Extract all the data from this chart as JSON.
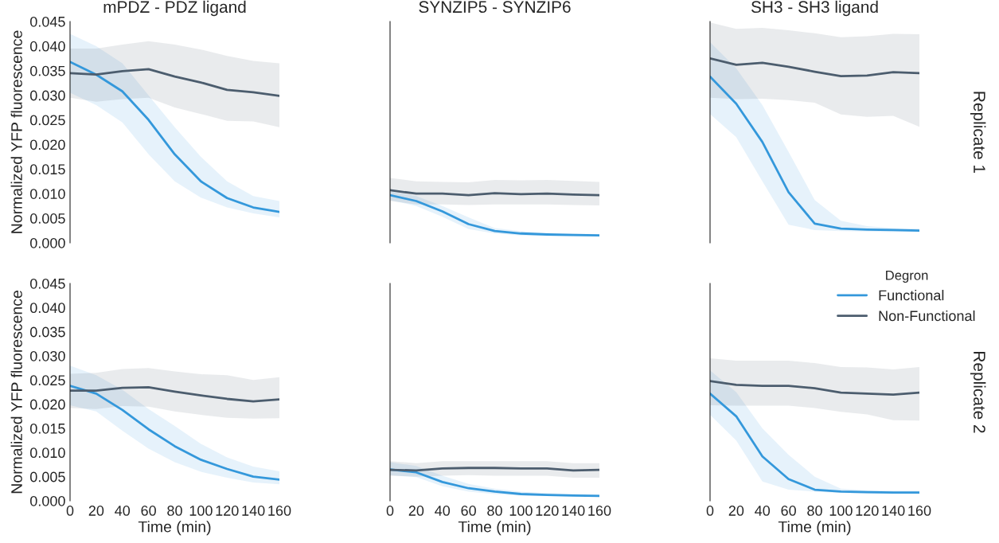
{
  "chart_data": [
    {
      "type": "line",
      "title": "mPDZ - PDZ ligand",
      "ylabel": "Normalized YFP fluorescence",
      "x": [
        0,
        20,
        40,
        60,
        80,
        100,
        120,
        140,
        160
      ],
      "xlim": [
        0,
        160
      ],
      "ylim": [
        0,
        0.045
      ],
      "yticks": [
        {
          "value": 0,
          "label": "0.000"
        },
        {
          "value": 0.005,
          "label": "0.005"
        },
        {
          "value": 0.01,
          "label": "0.010"
        },
        {
          "value": 0.015,
          "label": "0.015"
        },
        {
          "value": 0.02,
          "label": "0.020"
        },
        {
          "value": 0.025,
          "label": "0.025"
        },
        {
          "value": 0.03,
          "label": "0.030"
        },
        {
          "value": 0.035,
          "label": "0.035"
        },
        {
          "value": 0.04,
          "label": "0.040"
        },
        {
          "value": 0.045,
          "label": "0.045"
        }
      ],
      "tick_labels": "y",
      "grid": false,
      "series": [
        {
          "color": "#3498db",
          "values": [
            0.0368,
            0.0342,
            0.0308,
            0.025,
            0.018,
            0.0125,
            0.0091,
            0.0072,
            0.0063
          ],
          "upper": [
            0.0425,
            0.04,
            0.0365,
            0.03,
            0.0235,
            0.0175,
            0.0125,
            0.0095,
            0.0085
          ],
          "lower": [
            0.0305,
            0.028,
            0.0245,
            0.018,
            0.0125,
            0.0092,
            0.0072,
            0.006,
            0.0052
          ]
        },
        {
          "color": "#4c5d6e",
          "values": [
            0.0345,
            0.0342,
            0.0349,
            0.0353,
            0.0338,
            0.0326,
            0.0311,
            0.0306,
            0.0299
          ],
          "upper": [
            0.0395,
            0.0395,
            0.0403,
            0.041,
            0.0403,
            0.0393,
            0.038,
            0.037,
            0.0365
          ],
          "lower": [
            0.0295,
            0.0287,
            0.0292,
            0.0295,
            0.0275,
            0.0262,
            0.0248,
            0.0247,
            0.0235
          ]
        }
      ]
    },
    {
      "type": "line",
      "title": "SYNZIP5 - SYNZIP6",
      "x": [
        0,
        20,
        40,
        60,
        80,
        100,
        120,
        140,
        160
      ],
      "xlim": [
        0,
        160
      ],
      "ylim": [
        0,
        0.045
      ],
      "tick_labels": false,
      "grid": false,
      "series": [
        {
          "color": "#3498db",
          "values": [
            0.0097,
            0.0085,
            0.0064,
            0.0038,
            0.0024,
            0.0019,
            0.0017,
            0.0016,
            0.0015
          ],
          "upper": [
            0.0105,
            0.0095,
            0.0075,
            0.0052,
            0.003,
            0.0024,
            0.002,
            0.0019,
            0.0018
          ],
          "lower": [
            0.0087,
            0.0075,
            0.0053,
            0.0028,
            0.0019,
            0.0015,
            0.0014,
            0.0013,
            0.0013
          ]
        },
        {
          "color": "#4c5d6e",
          "values": [
            0.0107,
            0.01,
            0.01,
            0.0097,
            0.0101,
            0.0099,
            0.01,
            0.0098,
            0.0097
          ],
          "upper": [
            0.0132,
            0.0125,
            0.0124,
            0.0123,
            0.0128,
            0.0127,
            0.0128,
            0.0126,
            0.0124
          ],
          "lower": [
            0.0085,
            0.0078,
            0.0078,
            0.0077,
            0.0078,
            0.0078,
            0.0078,
            0.0077,
            0.0076
          ]
        }
      ]
    },
    {
      "type": "line",
      "title": "SH3 - SH3 ligand",
      "annotations": [
        "Replicate 1"
      ],
      "x": [
        0,
        20,
        40,
        60,
        80,
        100,
        120,
        140,
        160
      ],
      "xlim": [
        0,
        160
      ],
      "ylim": [
        0,
        0.045
      ],
      "tick_labels": false,
      "grid": false,
      "series": [
        {
          "color": "#3498db",
          "values": [
            0.0338,
            0.0283,
            0.0205,
            0.0103,
            0.0039,
            0.0029,
            0.0027,
            0.0026,
            0.0025
          ],
          "upper": [
            0.0408,
            0.0355,
            0.028,
            0.0185,
            0.0087,
            0.0045,
            0.0034,
            0.003,
            0.0029
          ],
          "lower": [
            0.0262,
            0.0215,
            0.0125,
            0.0037,
            0.0026,
            0.0024,
            0.0023,
            0.0022,
            0.0022
          ]
        },
        {
          "color": "#4c5d6e",
          "values": [
            0.0375,
            0.0362,
            0.0366,
            0.0358,
            0.0348,
            0.0339,
            0.034,
            0.0347,
            0.0345
          ],
          "upper": [
            0.0448,
            0.0435,
            0.0437,
            0.0432,
            0.0426,
            0.0418,
            0.042,
            0.0425,
            0.0424
          ],
          "lower": [
            0.0295,
            0.0292,
            0.0293,
            0.029,
            0.0285,
            0.0261,
            0.0256,
            0.0258,
            0.0236
          ]
        }
      ]
    },
    {
      "type": "line",
      "xlabel": "Time (min)",
      "ylabel": "Normalized YFP fluorescence",
      "x": [
        0,
        20,
        40,
        60,
        80,
        100,
        120,
        140,
        160
      ],
      "xlim": [
        0,
        160
      ],
      "ylim": [
        0,
        0.045
      ],
      "xticks": [
        0,
        20,
        40,
        60,
        80,
        100,
        120,
        140,
        160
      ],
      "yticks": [
        {
          "value": 0,
          "label": "0.000"
        },
        {
          "value": 0.005,
          "label": "0.005"
        },
        {
          "value": 0.01,
          "label": "0.010"
        },
        {
          "value": 0.015,
          "label": "0.015"
        },
        {
          "value": 0.02,
          "label": "0.020"
        },
        {
          "value": 0.025,
          "label": "0.025"
        },
        {
          "value": 0.03,
          "label": "0.030"
        },
        {
          "value": 0.035,
          "label": "0.035"
        },
        {
          "value": 0.04,
          "label": "0.040"
        },
        {
          "value": 0.045,
          "label": "0.045"
        }
      ],
      "grid": false,
      "series": [
        {
          "color": "#3498db",
          "values": [
            0.0238,
            0.0222,
            0.0188,
            0.0148,
            0.0113,
            0.0085,
            0.0066,
            0.005,
            0.0044
          ],
          "upper": [
            0.028,
            0.026,
            0.023,
            0.019,
            0.0155,
            0.0118,
            0.009,
            0.0071,
            0.0061
          ],
          "lower": [
            0.0198,
            0.0185,
            0.0145,
            0.0108,
            0.008,
            0.006,
            0.0048,
            0.0038,
            0.0034
          ]
        },
        {
          "color": "#4c5d6e",
          "values": [
            0.0228,
            0.0228,
            0.0234,
            0.0235,
            0.0226,
            0.0218,
            0.0211,
            0.0206,
            0.021
          ],
          "upper": [
            0.0263,
            0.0265,
            0.0273,
            0.0275,
            0.0268,
            0.0262,
            0.026,
            0.025,
            0.0256
          ],
          "lower": [
            0.0192,
            0.019,
            0.0196,
            0.0195,
            0.0185,
            0.0178,
            0.0172,
            0.017,
            0.0171
          ]
        }
      ]
    },
    {
      "type": "line",
      "xlabel": "Time (min)",
      "x": [
        0,
        20,
        40,
        60,
        80,
        100,
        120,
        140,
        160
      ],
      "xlim": [
        0,
        160
      ],
      "ylim": [
        0,
        0.045
      ],
      "xticks": [
        0,
        20,
        40,
        60,
        80,
        100,
        120,
        140,
        160
      ],
      "tick_labels": "x",
      "grid": false,
      "series": [
        {
          "color": "#3498db",
          "values": [
            0.0065,
            0.0059,
            0.0039,
            0.0026,
            0.0019,
            0.0014,
            0.0012,
            0.0011,
            0.001
          ],
          "upper": [
            0.008,
            0.0072,
            0.0052,
            0.0035,
            0.0025,
            0.0019,
            0.0016,
            0.0014,
            0.0013
          ],
          "lower": [
            0.0053,
            0.0049,
            0.003,
            0.0019,
            0.0014,
            0.0011,
            0.001,
            0.0009,
            0.0009
          ]
        },
        {
          "color": "#4c5d6e",
          "values": [
            0.0064,
            0.0063,
            0.0067,
            0.0068,
            0.0068,
            0.0067,
            0.0067,
            0.0063,
            0.0064
          ],
          "upper": [
            0.0082,
            0.0078,
            0.0082,
            0.0082,
            0.0082,
            0.0082,
            0.0082,
            0.0078,
            0.0078
          ],
          "lower": [
            0.0052,
            0.005,
            0.0052,
            0.0053,
            0.0052,
            0.0052,
            0.0052,
            0.0048,
            0.0048
          ]
        }
      ]
    },
    {
      "type": "line",
      "xlabel": "Time (min)",
      "annotations": [
        "Replicate 2"
      ],
      "legend_title": "Degron",
      "legend": "top right",
      "x": [
        0,
        20,
        40,
        60,
        80,
        100,
        120,
        140,
        160
      ],
      "xlim": [
        0,
        160
      ],
      "ylim": [
        0,
        0.045
      ],
      "xticks": [
        0,
        20,
        40,
        60,
        80,
        100,
        120,
        140,
        160
      ],
      "tick_labels": "x",
      "grid": false,
      "series": [
        {
          "name": "Functional",
          "color": "#3498db",
          "values": [
            0.0222,
            0.0175,
            0.0092,
            0.0045,
            0.0023,
            0.0019,
            0.0018,
            0.0017,
            0.0017
          ],
          "upper": [
            0.027,
            0.0225,
            0.015,
            0.0095,
            0.005,
            0.0025,
            0.0022,
            0.0021,
            0.0021
          ],
          "lower": [
            0.0178,
            0.0125,
            0.004,
            0.0023,
            0.0019,
            0.0016,
            0.0015,
            0.0015,
            0.0015
          ]
        },
        {
          "name": "Non-Functional",
          "color": "#4c5d6e",
          "values": [
            0.0248,
            0.024,
            0.0238,
            0.0238,
            0.0233,
            0.0224,
            0.0222,
            0.022,
            0.0224
          ],
          "upper": [
            0.0295,
            0.029,
            0.029,
            0.029,
            0.0285,
            0.0277,
            0.0276,
            0.0272,
            0.0277
          ],
          "lower": [
            0.0198,
            0.0197,
            0.0197,
            0.0197,
            0.0192,
            0.0184,
            0.0179,
            0.0167,
            0.0166
          ]
        }
      ]
    }
  ]
}
